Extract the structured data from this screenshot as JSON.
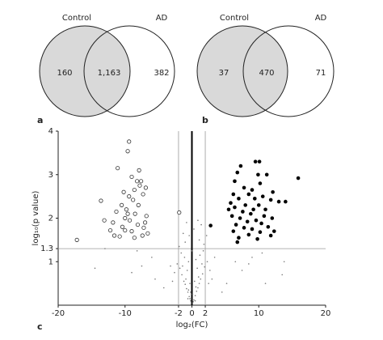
{
  "chart_data": [
    {
      "type": "venn",
      "panel": "a",
      "sets": [
        "Control",
        "AD"
      ],
      "values": [
        160,
        1163,
        382
      ],
      "value_labels": [
        "160",
        "1,163",
        "382"
      ],
      "colors": [
        "#d9d9d9",
        "#ffffff"
      ]
    },
    {
      "type": "venn",
      "panel": "b",
      "sets": [
        "Control",
        "AD"
      ],
      "values": [
        37,
        470,
        71
      ],
      "colors": [
        "#d9d9d9",
        "#ffffff"
      ]
    },
    {
      "type": "scatter",
      "panel": "c",
      "x_label": "log₂(FC)",
      "y_label": "log₁₀(p value)",
      "xlim": [
        -20,
        20
      ],
      "xticks": [
        -20,
        -10,
        -2,
        0,
        2,
        10,
        20
      ],
      "ylim": [
        0,
        4
      ],
      "yticks": [
        1,
        1.3,
        2,
        3,
        4
      ],
      "vlines": [
        -2,
        2
      ],
      "hlines": [
        1.3
      ],
      "zero_line": true,
      "series": [
        {
          "marker": "open",
          "color": "#333333",
          "x": [
            -17.2,
            -9.4,
            -9.6,
            -11.1,
            -7.9,
            -9.0,
            -8.2,
            -7.6,
            -7.8,
            -6.9,
            -8.6,
            -7.3,
            -10.2,
            -13.6,
            -9.4,
            -8.8,
            -10.5,
            -8.0,
            -9.8,
            -11.3,
            -8.5,
            -6.8,
            -10.0,
            -9.3,
            -13.1,
            -11.8,
            -8.1,
            -10.4,
            -7.2,
            -9.0,
            -6.6,
            -11.6,
            -10.8,
            -8.6,
            -7.4,
            -1.9,
            -10.0,
            -12.2,
            -9.6,
            -7.0
          ],
          "values": [
            1.5,
            3.76,
            3.54,
            3.15,
            3.1,
            2.95,
            2.85,
            2.85,
            2.75,
            2.7,
            2.65,
            2.55,
            2.6,
            2.4,
            2.5,
            2.42,
            2.3,
            2.3,
            2.2,
            2.15,
            2.1,
            2.05,
            2.0,
            1.95,
            1.95,
            1.9,
            1.85,
            1.8,
            1.78,
            1.7,
            1.65,
            1.6,
            1.58,
            1.55,
            1.6,
            2.13,
            1.72,
            1.72,
            2.1,
            1.9
          ]
        },
        {
          "marker": "filled",
          "color": "#000000",
          "x": [
            9.5,
            10.1,
            7.3,
            6.8,
            9.9,
            11.2,
            15.9,
            6.4,
            10.2,
            7.8,
            9.0,
            12.1,
            6.2,
            8.5,
            10.6,
            7.0,
            9.4,
            11.8,
            13.0,
            14.0,
            5.8,
            8.0,
            10.0,
            6.4,
            9.2,
            11.0,
            5.5,
            7.6,
            8.8,
            10.8,
            6.0,
            12.0,
            7.2,
            9.6,
            8.3,
            10.4,
            6.6,
            2.8,
            11.4,
            7.8,
            9.0,
            6.2,
            10.2,
            8.5,
            11.8,
            7.0,
            9.8,
            6.8,
            12.3
          ],
          "values": [
            3.3,
            3.3,
            3.2,
            3.05,
            3.0,
            3.0,
            2.92,
            2.85,
            2.8,
            2.7,
            2.65,
            2.6,
            2.55,
            2.55,
            2.5,
            2.45,
            2.45,
            2.42,
            2.38,
            2.38,
            2.35,
            2.3,
            2.3,
            2.25,
            2.2,
            2.2,
            2.2,
            2.15,
            2.1,
            2.05,
            2.05,
            2.0,
            2.0,
            1.95,
            1.92,
            1.88,
            1.85,
            1.83,
            1.8,
            1.78,
            1.75,
            1.7,
            1.68,
            1.62,
            1.6,
            1.55,
            1.52,
            1.45,
            1.7
          ]
        },
        {
          "marker": "dot",
          "color": "#777777",
          "x": [
            0.1,
            -0.2,
            0.3,
            -0.4,
            0.5,
            -0.6,
            0.7,
            -0.3,
            0.2,
            -0.8,
            0.9,
            -1.0,
            1.1,
            -1.2,
            1.3,
            -0.5,
            0.6,
            -1.5,
            1.6,
            -1.8,
            1.9,
            -2.2,
            2.3,
            -0.9,
            1.0,
            -1.4,
            1.5,
            -0.7,
            0.8,
            -1.1,
            1.2,
            -0.3,
            0.4,
            -1.6,
            1.7,
            -0.5,
            0.6,
            -2.6,
            2.7,
            -1.0,
            1.1,
            -0.4,
            0.3,
            1.4,
            -1.3,
            0.9,
            -0.8,
            2.2,
            1.8,
            -1.9,
            2.5,
            -2.9,
            3.0,
            -3.2,
            3.4,
            -0.2,
            0.1,
            0.0,
            -0.6,
            0.5,
            -14.5,
            -13,
            -9,
            -7.5,
            -6.0,
            -5.5,
            -4.2,
            -8.2,
            6.5,
            7.5,
            8.5,
            10.5,
            13.5,
            13.8,
            9.0,
            5.2,
            4.5,
            11
          ],
          "values": [
            0.05,
            0.1,
            0.12,
            0.2,
            0.22,
            0.3,
            0.32,
            0.15,
            0.08,
            0.38,
            0.4,
            0.48,
            0.5,
            0.55,
            0.6,
            0.35,
            0.42,
            0.7,
            0.72,
            0.85,
            0.88,
            0.95,
            1.0,
            0.6,
            0.65,
            0.9,
            0.95,
            0.8,
            0.85,
            1.1,
            1.15,
            0.5,
            0.55,
            1.2,
            1.25,
            1.0,
            1.05,
            0.75,
            0.8,
            1.45,
            1.5,
            1.6,
            1.75,
            1.85,
            1.65,
            1.95,
            1.9,
            1.6,
            1.4,
            1.35,
            0.5,
            0.55,
            0.6,
            0.9,
            1.1,
            0.3,
            0.25,
            1.25,
            0.15,
            0.1,
            0.85,
            1.3,
            0.75,
            0.9,
            1.1,
            0.6,
            0.4,
            1.25,
            1.0,
            0.8,
            0.95,
            1.2,
            0.7,
            1.0,
            1.1,
            0.5,
            0.3,
            0.5
          ]
        }
      ]
    }
  ]
}
